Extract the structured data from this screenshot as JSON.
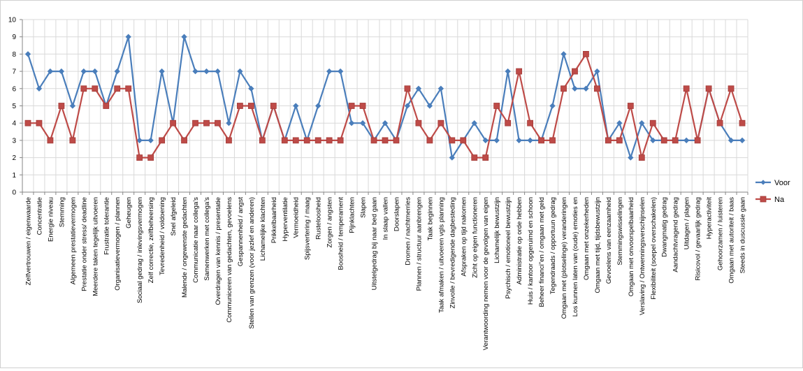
{
  "chart_data": {
    "type": "line",
    "title": "",
    "xlabel": "",
    "ylabel": "",
    "ylim": [
      0,
      10
    ],
    "yticks": [
      0,
      1,
      2,
      3,
      4,
      5,
      6,
      7,
      8,
      9,
      10
    ],
    "grid": true,
    "legend_position": "right",
    "categories": [
      "Zelfvertrouwen / eigenwaarde",
      "Concentratie",
      "Energie niveau",
      "Stemming",
      "Algemeen prestatievermogen",
      "Prestatie onder stress/ deadline",
      "Meerdere taken tegelijk uitvoeren",
      "Frustratie tolerantie",
      "Organisatievermogen / plannen",
      "Geheugen",
      "Sociaal gedrag / inlevingsvermogen",
      "Zelf correctie, zelfbeheersing",
      "Tevredenheid / voldoening",
      "Snel afgeleid",
      "Malende / ongewenste gedachten",
      "Communicatie naar collega's",
      "Samenwerken met collega's",
      "Overdragen van kennis / presentatie",
      "Communiceren van gedachten, gevoelens",
      "Gespannenheid / angst",
      "Stellen van grenzen (voor jezlef en anderen)",
      "Lichamelijke klachten",
      "Prikkelbaarheid",
      "Hyperventilatie",
      "Vermoeidheid",
      "Spijsvertering / maag",
      "Rusteloosheid",
      "Zorgen / angsten",
      "Boosheid / temperament",
      "Pijnklachten",
      "Slapen",
      "Uitstelgedrag bij naar bed gaan",
      "In slaap vallen",
      "Doorslapen",
      "Dromen / nachtmerries",
      "Plannen / structuur aanbrengen",
      "Taak beginnen",
      "Taak afmaken / uitvoeren vgls planning",
      "Zinvolle / bevredigende dagbesteding",
      "Afspraken op tijd nakomen",
      "Zicht op eigen functioneren",
      "Verantwoording nemen voor de gevolgen van eigen",
      "Lichamelijk bewustzijn",
      "Psychisch / emotioneel bewustzijn",
      "Administratie op orde hebben",
      "Huis / kantoor opgeruimd en schoon",
      "Beheer financi\"en / omgaan met geld",
      "Tegendraads / opportuun gedrag",
      "Omgaan met (plotselinge) veranderingen",
      "Los kunnen laten van (oude) emoties en",
      "Omgaan met onzekerheden",
      "Omgaan met tijd, tijdsbewustzijn",
      "Gevoelens van eenzaamheid",
      "Stemmingswisselingen",
      "Omgaan met onvoorspelbaarheid",
      "Verslaving / Ontwenningsverschijnselen",
      "Flexibiliteit (soepel overschakelen)",
      "Dwangmatig gedrag",
      "Aandachtvragend gedrag",
      "Uitdagen / plagen",
      "Risicovol / gevaarlijk gedrag",
      "Hyperactiviteit",
      "Gehoorzamen / luisteren",
      "Omgaan met autoriteit / baas",
      "Steeds in duscussie gaan"
    ],
    "series": [
      {
        "name": "Voor",
        "color": "#4a7ebb",
        "marker": "diamond",
        "values": [
          8,
          6,
          7,
          7,
          5,
          7,
          7,
          5,
          7,
          9,
          3,
          3,
          7,
          4,
          9,
          7,
          7,
          7,
          4,
          7,
          6,
          3,
          5,
          3,
          5,
          3,
          5,
          7,
          7,
          4,
          4,
          3,
          4,
          3,
          5,
          6,
          5,
          6,
          2,
          3,
          4,
          3,
          3,
          7,
          3,
          3,
          3,
          5,
          8,
          6,
          6,
          7,
          3,
          4,
          2,
          4,
          3,
          3,
          3,
          3,
          3,
          6,
          4,
          3,
          3
        ]
      },
      {
        "name": "Na",
        "color": "#be4b48",
        "marker": "square",
        "values": [
          4,
          4,
          3,
          5,
          3,
          6,
          6,
          5,
          6,
          6,
          2,
          2,
          3,
          4,
          3,
          4,
          4,
          4,
          3,
          5,
          5,
          3,
          5,
          3,
          3,
          3,
          3,
          3,
          3,
          5,
          5,
          3,
          3,
          3,
          6,
          4,
          3,
          4,
          3,
          3,
          2,
          2,
          5,
          4,
          7,
          4,
          3,
          3,
          6,
          7,
          8,
          6,
          3,
          3,
          5,
          2,
          4,
          3,
          3,
          6,
          3,
          6,
          4,
          6,
          4
        ]
      }
    ]
  }
}
